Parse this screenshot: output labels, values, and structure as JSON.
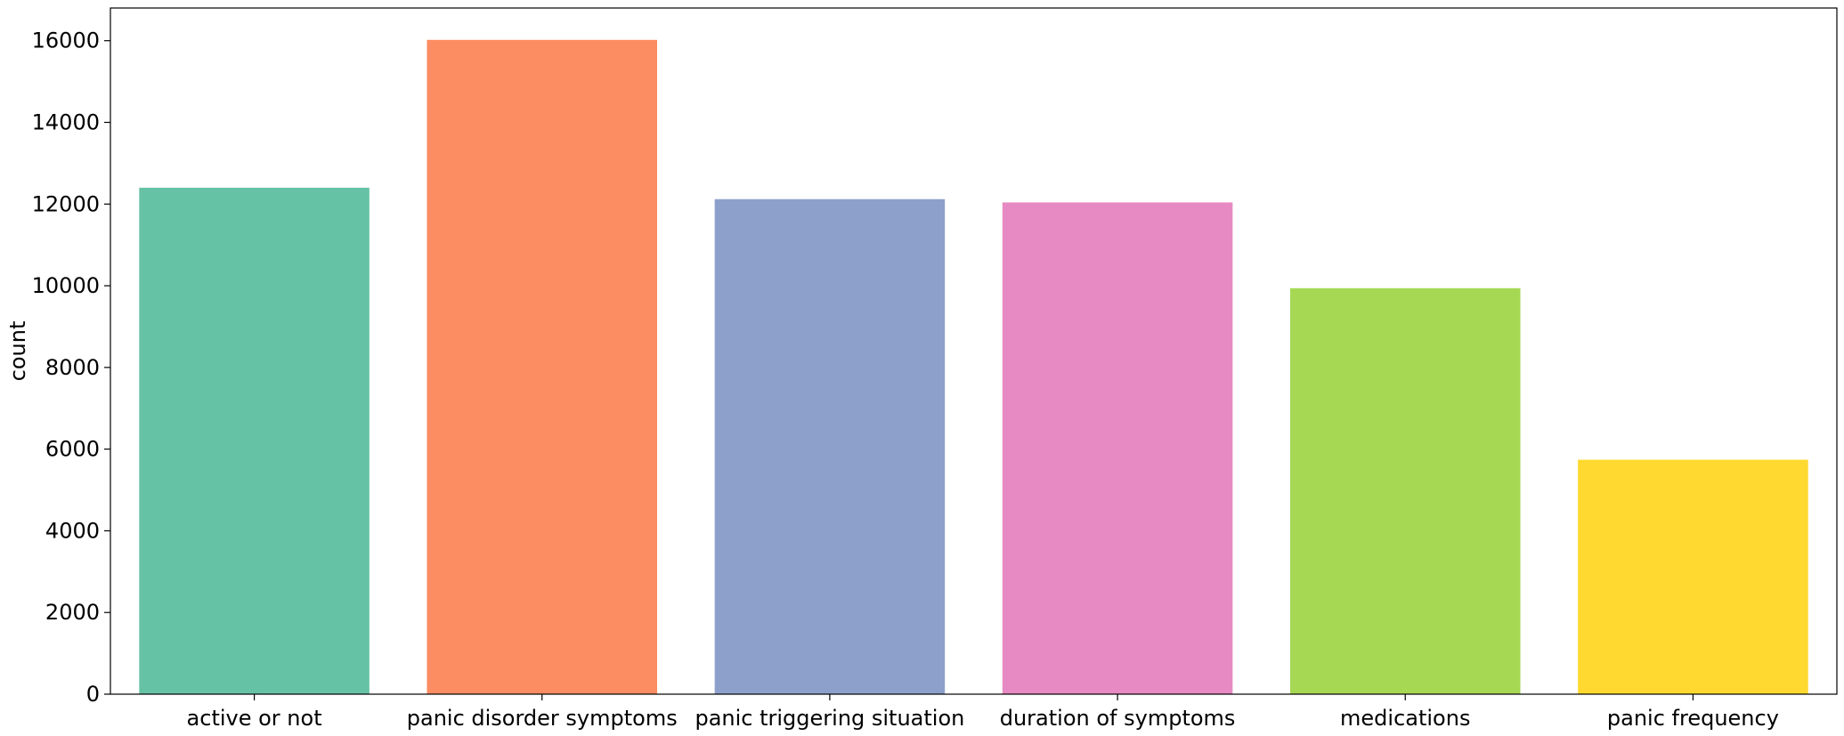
{
  "chart_data": {
    "type": "bar",
    "categories": [
      "active or not",
      "panic disorder symptoms",
      "panic triggering situation",
      "duration of symptoms",
      "medications",
      "panic frequency"
    ],
    "values": [
      12400,
      16020,
      12120,
      12040,
      9940,
      5740
    ],
    "colors": [
      "#66c2a5",
      "#fc8d62",
      "#8da0cb",
      "#e78ac3",
      "#a6d854",
      "#ffd92f"
    ],
    "xlabel": "",
    "ylabel": "count",
    "ylim": [
      0,
      16800
    ],
    "yticks": [
      0,
      2000,
      4000,
      6000,
      8000,
      10000,
      12000,
      14000,
      16000
    ],
    "grid": false
  }
}
